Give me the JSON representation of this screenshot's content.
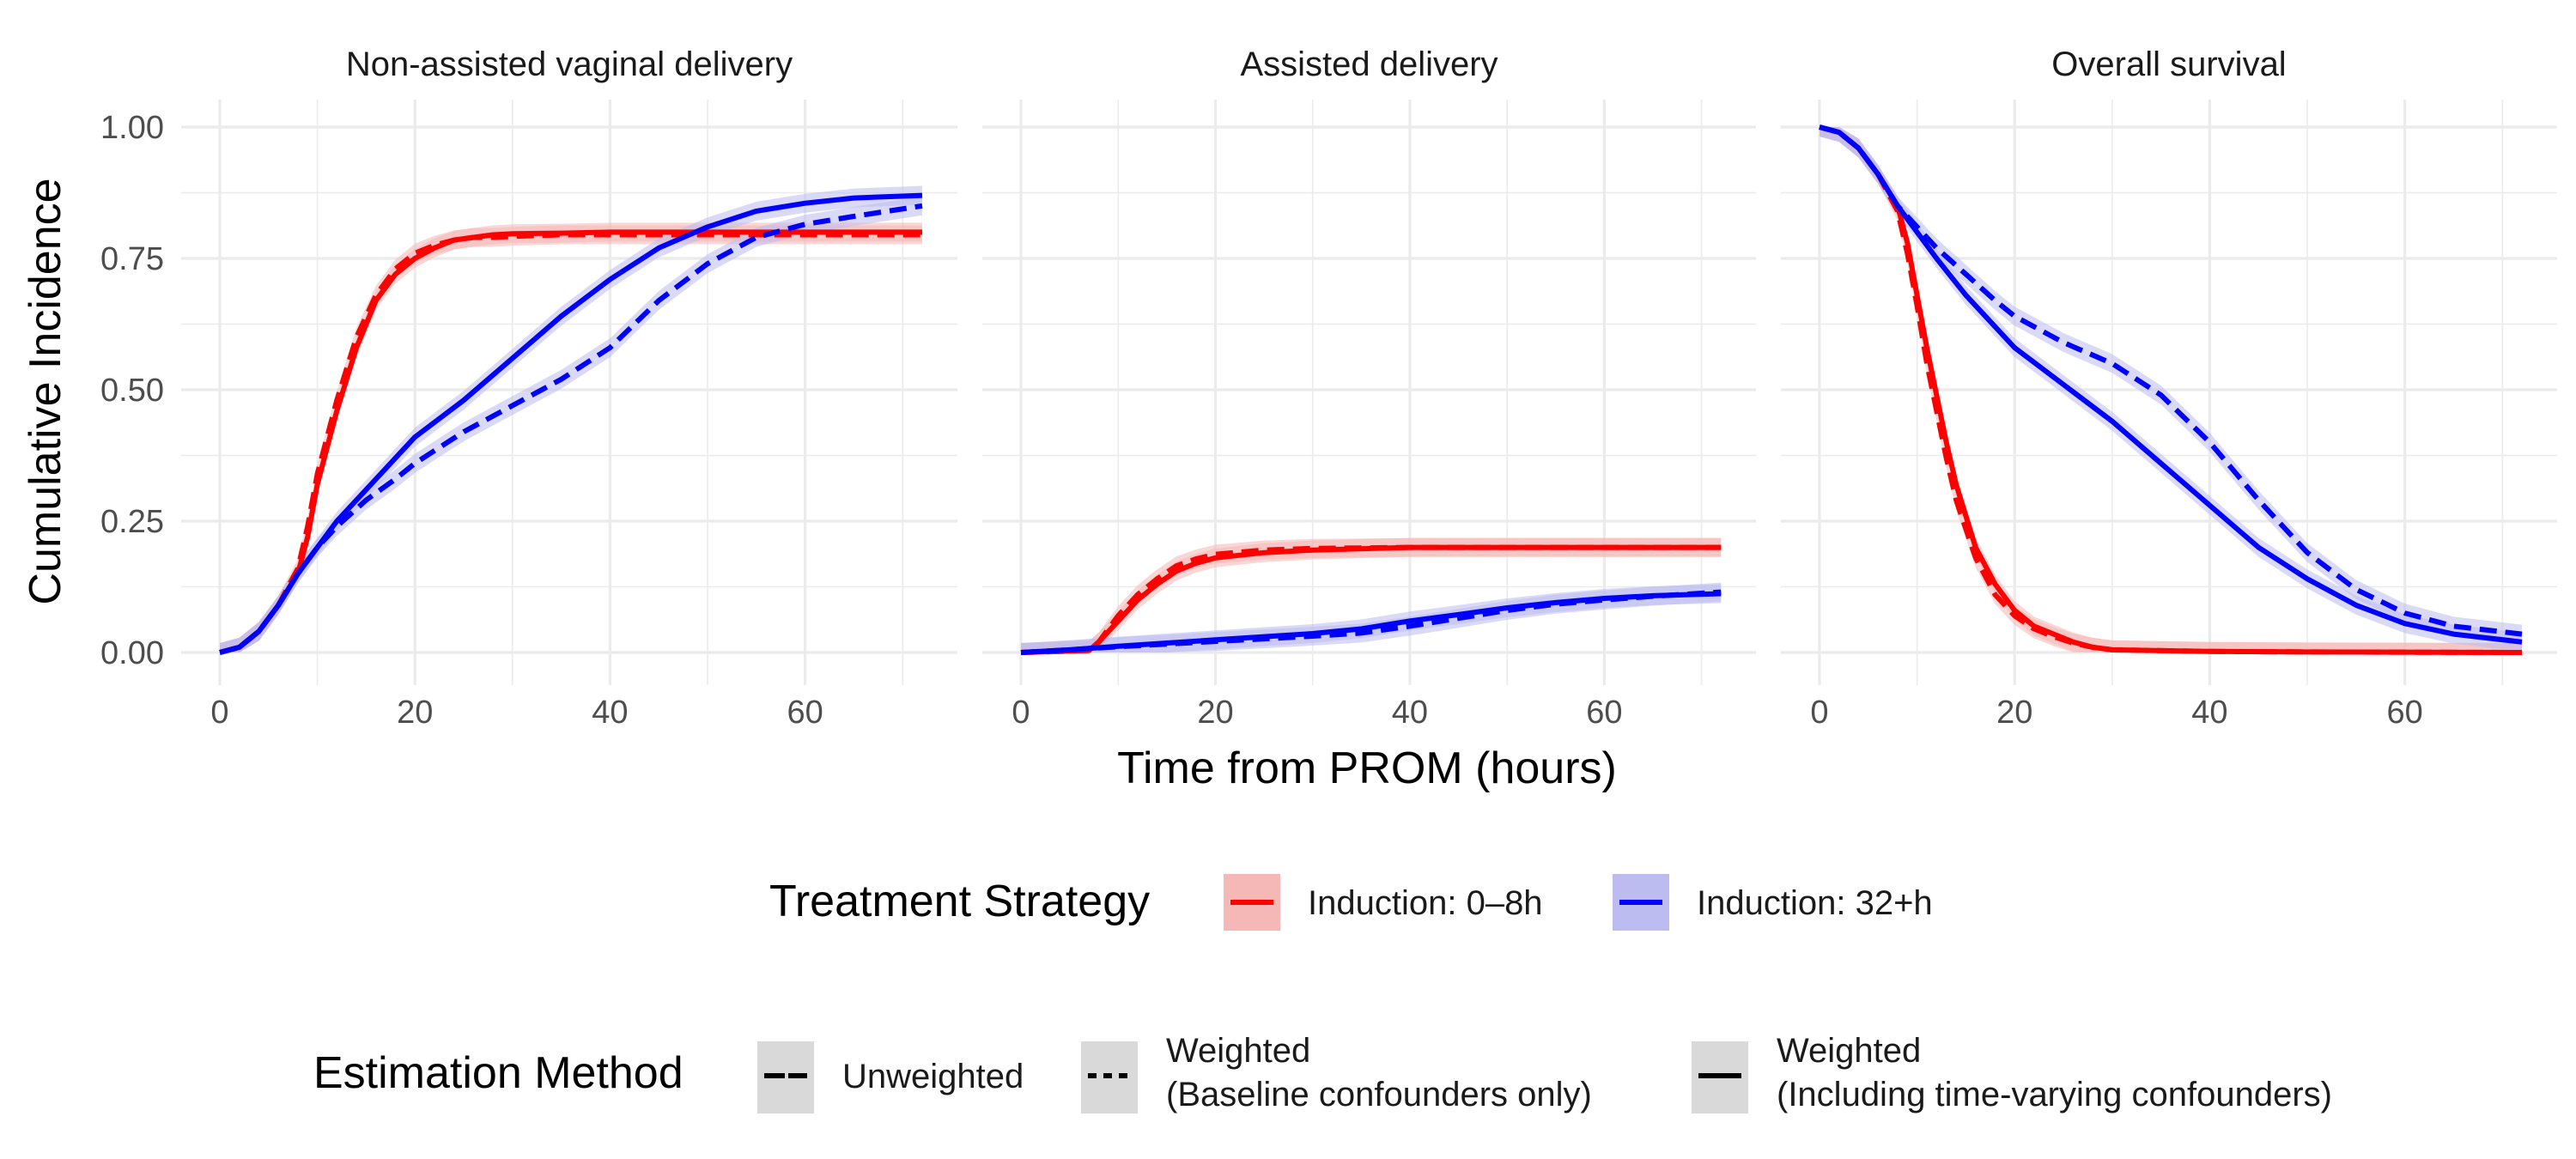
{
  "chart_data": {
    "type": "line",
    "xlabel": "Time from PROM (hours)",
    "ylabel": "Cumulative Incidence",
    "xlim": [
      0,
      72
    ],
    "ylim": [
      0,
      1
    ],
    "x_ticks": [
      "0",
      "20",
      "40",
      "60"
    ],
    "y_ticks": [
      "0.00",
      "0.25",
      "0.50",
      "0.75",
      "1.00"
    ],
    "grid": true,
    "colors": {
      "induction_0_8h": "#ff0000",
      "induction_32h": "#0000ff",
      "band_red": "#f6b7b7",
      "band_blue": "#bcbcf0"
    },
    "legends": {
      "treatment": {
        "title": "Treatment Strategy",
        "items": [
          {
            "label": "Induction: 0–8h",
            "color": "#ff0000",
            "fill": "#f6b7b7"
          },
          {
            "label": "Induction: 32+h",
            "color": "#0000ff",
            "fill": "#bcbcf0"
          }
        ]
      },
      "method": {
        "title": "Estimation Method",
        "items": [
          {
            "label_lines": [
              "Unweighted"
            ],
            "linetype": "longdash"
          },
          {
            "label_lines": [
              "Weighted",
              "(Baseline confounders only)"
            ],
            "linetype": "dashed"
          },
          {
            "label_lines": [
              "Weighted",
              "(Including time-varying confounders)"
            ],
            "linetype": "solid"
          }
        ]
      }
    },
    "panels": [
      {
        "title": "Non-assisted vaginal delivery",
        "series": [
          {
            "strategy": "Induction: 0–8h",
            "method": "Weighted (Including time-varying confounders)",
            "x": [
              0,
              2,
              4,
              6,
              8,
              9,
              10,
              12,
              14,
              16,
              18,
              20,
              22,
              24,
              26,
              28,
              30,
              35,
              40,
              50,
              60,
              72
            ],
            "y": [
              0,
              0.01,
              0.04,
              0.09,
              0.15,
              0.22,
              0.32,
              0.46,
              0.58,
              0.67,
              0.72,
              0.75,
              0.77,
              0.785,
              0.79,
              0.795,
              0.797,
              0.798,
              0.8,
              0.8,
              0.8,
              0.8
            ]
          },
          {
            "strategy": "Induction: 0–8h",
            "method": "Weighted (Baseline confounders only)",
            "x": [
              0,
              2,
              4,
              6,
              8,
              9,
              10,
              12,
              14,
              16,
              18,
              20,
              22,
              24,
              26,
              28,
              30,
              35,
              40,
              50,
              60,
              72
            ],
            "y": [
              0,
              0.01,
              0.04,
              0.09,
              0.16,
              0.24,
              0.34,
              0.48,
              0.6,
              0.68,
              0.73,
              0.76,
              0.775,
              0.785,
              0.79,
              0.79,
              0.792,
              0.795,
              0.795,
              0.795,
              0.795,
              0.795
            ]
          },
          {
            "strategy": "Induction: 32+h",
            "method": "Weighted (Including time-varying confounders)",
            "x": [
              0,
              2,
              4,
              6,
              8,
              10,
              12,
              15,
              18,
              20,
              25,
              30,
              35,
              40,
              45,
              50,
              55,
              60,
              65,
              72
            ],
            "y": [
              0,
              0.01,
              0.04,
              0.09,
              0.15,
              0.2,
              0.25,
              0.31,
              0.37,
              0.41,
              0.48,
              0.56,
              0.64,
              0.71,
              0.77,
              0.81,
              0.84,
              0.855,
              0.865,
              0.87
            ]
          },
          {
            "strategy": "Induction: 32+h",
            "method": "Weighted (Baseline confounders only)",
            "x": [
              0,
              2,
              4,
              6,
              8,
              10,
              12,
              15,
              18,
              20,
              25,
              30,
              35,
              40,
              45,
              50,
              55,
              60,
              65,
              72
            ],
            "y": [
              0,
              0.01,
              0.04,
              0.09,
              0.15,
              0.2,
              0.24,
              0.29,
              0.33,
              0.36,
              0.42,
              0.47,
              0.52,
              0.58,
              0.67,
              0.74,
              0.79,
              0.815,
              0.83,
              0.85
            ]
          }
        ]
      },
      {
        "title": "Assisted delivery",
        "series": [
          {
            "strategy": "Induction: 0–8h",
            "method": "Weighted (Including time-varying confounders)",
            "x": [
              0,
              4,
              7,
              8,
              9,
              10,
              12,
              14,
              16,
              18,
              20,
              25,
              30,
              40,
              72
            ],
            "y": [
              0,
              0.002,
              0.004,
              0.02,
              0.04,
              0.06,
              0.1,
              0.13,
              0.155,
              0.17,
              0.18,
              0.19,
              0.195,
              0.2,
              0.2
            ]
          },
          {
            "strategy": "Induction: 0–8h",
            "method": "Weighted (Baseline confounders only)",
            "x": [
              0,
              4,
              7,
              8,
              9,
              10,
              12,
              14,
              16,
              18,
              20,
              25,
              30,
              40,
              72
            ],
            "y": [
              0,
              0.002,
              0.004,
              0.02,
              0.045,
              0.07,
              0.11,
              0.14,
              0.165,
              0.178,
              0.187,
              0.195,
              0.198,
              0.2,
              0.2
            ]
          },
          {
            "strategy": "Induction: 32+h",
            "method": "Weighted (Including time-varying confounders)",
            "x": [
              0,
              5,
              10,
              15,
              20,
              25,
              30,
              35,
              40,
              45,
              50,
              55,
              60,
              65,
              72
            ],
            "y": [
              0,
              0.005,
              0.012,
              0.018,
              0.024,
              0.03,
              0.036,
              0.045,
              0.06,
              0.072,
              0.085,
              0.095,
              0.103,
              0.108,
              0.112
            ]
          },
          {
            "strategy": "Induction: 32+h",
            "method": "Weighted (Baseline confounders only)",
            "x": [
              0,
              5,
              10,
              15,
              20,
              25,
              30,
              35,
              40,
              45,
              50,
              55,
              60,
              65,
              72
            ],
            "y": [
              0,
              0.005,
              0.011,
              0.016,
              0.021,
              0.026,
              0.031,
              0.037,
              0.05,
              0.065,
              0.08,
              0.092,
              0.1,
              0.107,
              0.115
            ]
          }
        ]
      },
      {
        "title": "Overall survival",
        "series": [
          {
            "strategy": "Induction: 0–8h",
            "method": "Weighted (Including time-varying confounders)",
            "x": [
              0,
              2,
              4,
              6,
              8,
              9,
              10,
              11,
              12,
              13,
              14,
              16,
              18,
              20,
              22,
              24,
              26,
              28,
              30,
              40,
              50,
              72
            ],
            "y": [
              1,
              0.99,
              0.96,
              0.91,
              0.85,
              0.78,
              0.68,
              0.58,
              0.49,
              0.4,
              0.32,
              0.2,
              0.13,
              0.08,
              0.05,
              0.035,
              0.02,
              0.01,
              0.005,
              0.002,
              0.001,
              0
            ]
          },
          {
            "strategy": "Induction: 0–8h",
            "method": "Weighted (Baseline confounders only)",
            "x": [
              0,
              2,
              4,
              6,
              8,
              9,
              10,
              11,
              12,
              13,
              14,
              16,
              18,
              20,
              22,
              24,
              26,
              28,
              30,
              40,
              50,
              72
            ],
            "y": [
              1,
              0.99,
              0.96,
              0.91,
              0.84,
              0.76,
              0.66,
              0.55,
              0.46,
              0.37,
              0.29,
              0.18,
              0.11,
              0.07,
              0.045,
              0.03,
              0.018,
              0.01,
              0.005,
              0.002,
              0.001,
              0
            ]
          },
          {
            "strategy": "Induction: 32+h",
            "method": "Weighted (Including time-varying confounders)",
            "x": [
              0,
              2,
              4,
              6,
              8,
              10,
              12,
              15,
              18,
              20,
              25,
              30,
              35,
              40,
              45,
              50,
              55,
              60,
              65,
              72
            ],
            "y": [
              1,
              0.99,
              0.96,
              0.91,
              0.85,
              0.8,
              0.75,
              0.68,
              0.62,
              0.58,
              0.51,
              0.44,
              0.36,
              0.28,
              0.2,
              0.14,
              0.09,
              0.055,
              0.035,
              0.02
            ]
          },
          {
            "strategy": "Induction: 32+h",
            "method": "Weighted (Baseline confounders only)",
            "x": [
              0,
              2,
              4,
              6,
              8,
              10,
              12,
              15,
              18,
              20,
              25,
              30,
              35,
              40,
              45,
              50,
              55,
              60,
              65,
              72
            ],
            "y": [
              1,
              0.99,
              0.96,
              0.91,
              0.85,
              0.81,
              0.77,
              0.72,
              0.67,
              0.64,
              0.59,
              0.55,
              0.49,
              0.4,
              0.29,
              0.19,
              0.12,
              0.075,
              0.05,
              0.035
            ]
          }
        ]
      }
    ]
  }
}
